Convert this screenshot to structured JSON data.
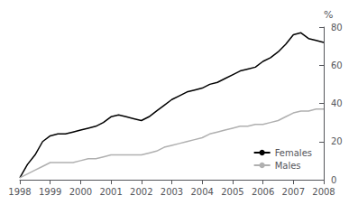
{
  "chart_data": {
    "type": "line",
    "x": [
      1998,
      1998.25,
      1998.5,
      1998.75,
      1999,
      1999.25,
      1999.5,
      1999.75,
      2000,
      2000.25,
      2000.5,
      2000.75,
      2001,
      2001.25,
      2001.5,
      2001.75,
      2002,
      2002.25,
      2002.5,
      2002.75,
      2003,
      2003.25,
      2003.5,
      2003.75,
      2004,
      2004.25,
      2004.5,
      2004.75,
      2005,
      2005.25,
      2005.5,
      2005.75,
      2006,
      2006.25,
      2006.5,
      2006.75,
      2007,
      2007.25,
      2007.5,
      2007.75,
      2008
    ],
    "series": [
      {
        "name": "Females",
        "color": "#000000",
        "values": [
          1,
          8,
          13,
          20,
          23,
          24,
          24,
          25,
          26,
          27,
          28,
          30,
          33,
          34,
          33,
          32,
          31,
          33,
          36,
          39,
          42,
          44,
          46,
          47,
          48,
          50,
          51,
          53,
          55,
          57,
          58,
          59,
          62,
          64,
          67,
          71,
          76,
          77,
          74,
          73,
          72
        ]
      },
      {
        "name": "Males",
        "color": "#b0b0b0",
        "values": [
          1,
          3,
          5,
          7,
          9,
          9,
          9,
          9,
          10,
          11,
          11,
          12,
          13,
          13,
          13,
          13,
          13,
          14,
          15,
          17,
          18,
          19,
          20,
          21,
          22,
          24,
          25,
          26,
          27,
          28,
          28,
          29,
          29,
          30,
          31,
          33,
          35,
          36,
          36,
          37,
          37
        ]
      }
    ],
    "xlim": [
      1998,
      2008
    ],
    "xticks": [
      1998,
      1999,
      2000,
      2001,
      2002,
      2003,
      2004,
      2005,
      2006,
      2007,
      2008
    ],
    "ylim": [
      0,
      80
    ],
    "yticks": [
      0,
      20,
      40,
      60,
      80
    ],
    "ylabel": "%",
    "legend": "lower right",
    "grid": false
  }
}
